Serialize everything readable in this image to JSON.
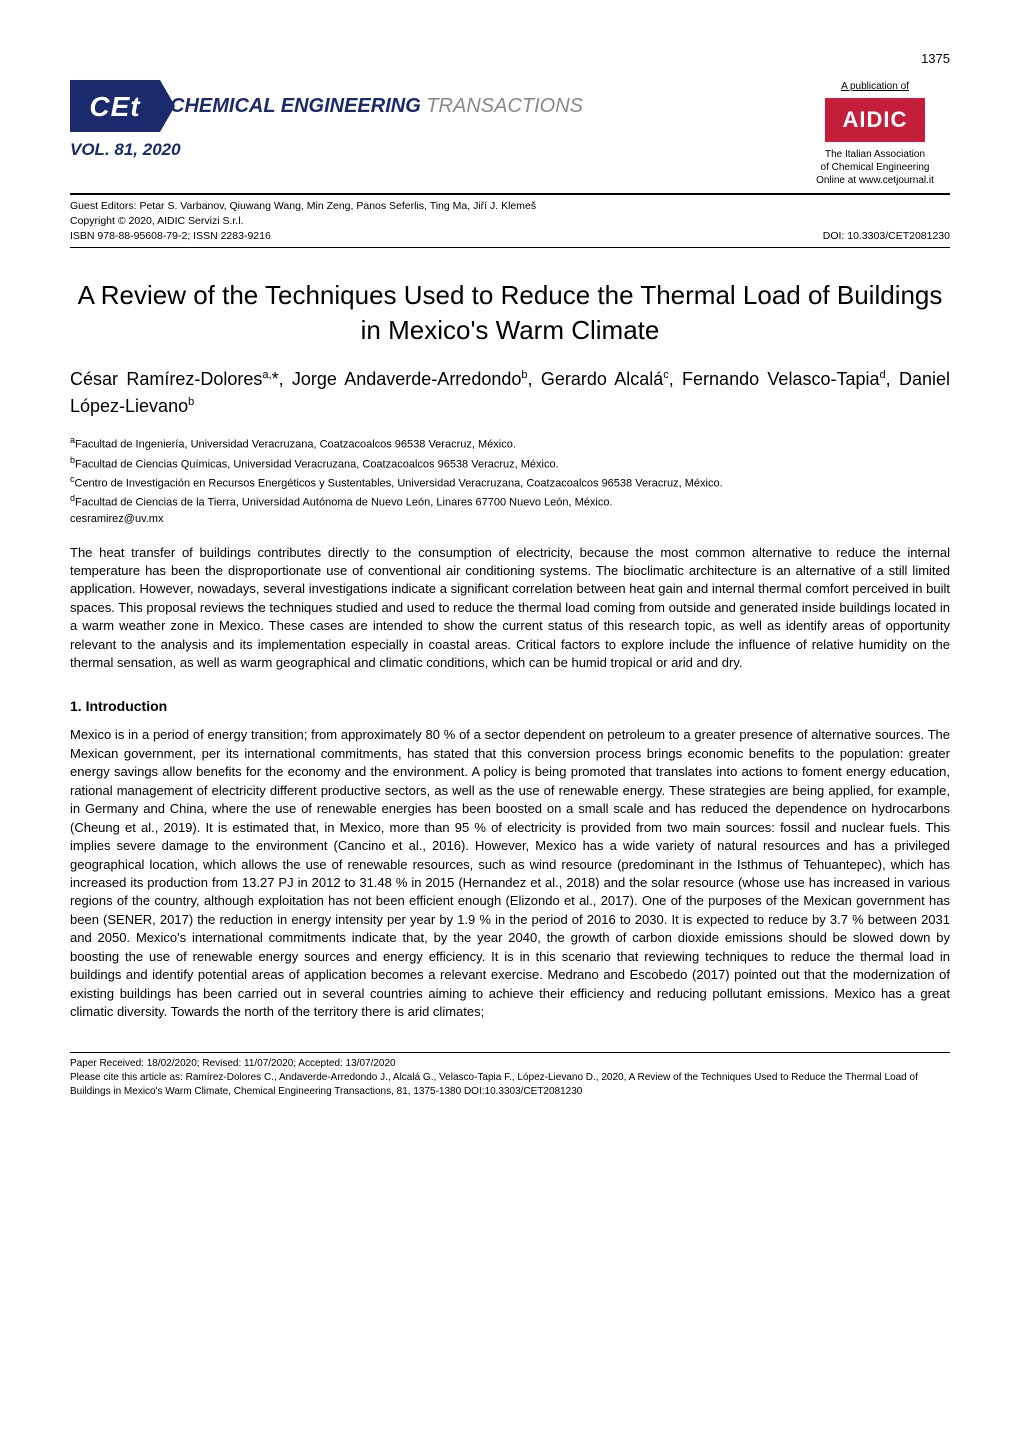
{
  "page_number": "1375",
  "header": {
    "cet_logo_text": "CEt",
    "journal_title_main": "CHEMICAL ENGINEERING",
    "journal_title_sub": "TRANSACTIONS",
    "volume": "VOL. 81, 2020",
    "pub_of": "A publication of",
    "aidic_text": "AIDIC",
    "assoc_line1": "The Italian Association",
    "assoc_line2": "of Chemical Engineering",
    "assoc_line3": "Online at www.cetjournal.it"
  },
  "editors": {
    "guest_editors": "Guest Editors: Petar S. Varbanov, Qiuwang Wang, Min Zeng, Panos Seferlis, Ting Ma, Jiří J. Klemeš",
    "copyright": "Copyright © 2020, AIDIC Servizi S.r.l.",
    "isbn_issn": "ISBN 978-88-95608-79-2; ISSN 2283-9216",
    "doi": "DOI: 10.3303/CET2081230"
  },
  "article": {
    "title": "A Review of the Techniques Used to Reduce the Thermal Load of Buildings in Mexico's Warm Climate",
    "authors_html": "César Ramírez-Dolores<sup>a,</sup>*, Jorge Andaverde-Arredondo<sup>b</sup>, Gerardo Alcalá<sup>c</sup>, Fernando Velasco-Tapia<sup>d</sup>, Daniel López-Lievano<sup>b</sup>",
    "affiliations": [
      {
        "sup": "a",
        "text": "Facultad de Ingeniería, Universidad Veracruzana, Coatzacoalcos 96538 Veracruz, México."
      },
      {
        "sup": "b",
        "text": "Facultad de Ciencias Químicas, Universidad Veracruzana, Coatzacoalcos 96538 Veracruz, México."
      },
      {
        "sup": "c",
        "text": "Centro de Investigación en Recursos Energéticos y Sustentables, Universidad Veracruzana, Coatzacoalcos 96538 Veracruz, México."
      },
      {
        "sup": "d",
        "text": "Facultad de Ciencias de la Tierra, Universidad Autónoma de Nuevo León, Linares 67700 Nuevo León, México."
      }
    ],
    "email": " cesramirez@uv.mx",
    "abstract": "The heat transfer of buildings contributes directly to the consumption of electricity, because the most common alternative to reduce the internal temperature has been the disproportionate use of conventional air conditioning systems. The bioclimatic architecture is an alternative of a still limited application. However, nowadays, several investigations indicate a significant correlation between heat gain and internal thermal comfort perceived in built spaces. This proposal reviews the techniques studied and used to reduce the thermal load coming from outside and generated inside buildings located in a warm weather zone in Mexico. These cases are intended to show the current status of this research topic, as well as identify areas of opportunity relevant to the analysis and its implementation especially in coastal areas. Critical factors to explore include the influence of relative humidity on the thermal sensation, as well as warm geographical and climatic conditions, which can be humid tropical or arid and dry."
  },
  "section1": {
    "heading": "1. Introduction",
    "body": "Mexico is in a period of energy transition; from approximately 80 % of a sector dependent on petroleum to a greater presence of alternative sources. The Mexican government, per its international commitments, has stated that this conversion process brings economic benefits to the population: greater energy savings allow benefits for the economy and the environment. A policy is being promoted that translates into actions to foment energy education, rational management of electricity different productive sectors, as well as the use of renewable energy. These strategies are being applied, for example, in Germany and China, where the use of renewable energies has been boosted on a small scale and has reduced the dependence on hydrocarbons (Cheung et al., 2019). It is estimated that, in Mexico, more than 95 % of electricity is provided from two main sources: fossil and nuclear fuels. This implies severe damage to the environment (Cancino et al., 2016). However, Mexico has a wide variety of natural resources and has a privileged geographical location, which allows the use of renewable resources, such as wind resource (predominant in the Isthmus of Tehuantepec), which has increased its production from 13.27 PJ in 2012 to 31.48 % in 2015 (Hernandez et al., 2018) and the solar resource (whose use has increased in various regions of the country, although exploitation has not been efficient enough (Elizondo et al., 2017). One of the purposes of the Mexican government has been (SENER, 2017) the reduction in energy intensity per year by 1.9 % in the period of 2016 to 2030. It is expected to reduce by 3.7 % between 2031 and 2050. Mexico's international commitments indicate that, by the year 2040, the growth of carbon dioxide emissions should be slowed down by boosting the use of renewable energy sources and energy efficiency. It is in this scenario that reviewing techniques to reduce the thermal load in buildings and identify potential areas of application becomes a relevant exercise. Medrano and Escobedo (2017) pointed out that the modernization of existing buildings has been carried out in several countries aiming to achieve their efficiency and reducing pollutant emissions. Mexico has a great climatic diversity. Towards the north of the territory there is arid climates;"
  },
  "footer": {
    "received": "Paper Received: 18/02/2020; Revised: 11/07/2020; Accepted: 13/07/2020",
    "citation": "Please cite this article as: Ramírez-Dolores C., Andaverde-Arredondo J., Alcalá G., Velasco-Tapia F., López-Lievano D., 2020, A Review of the Techniques Used to Reduce the Thermal Load of Buildings in Mexico's Warm Climate, Chemical Engineering Transactions, 81, 1375-1380 DOI:10.3303/CET2081230"
  },
  "colors": {
    "navy": "#1a2a6c",
    "red": "#c41e3a",
    "gray": "#888888",
    "black": "#000000",
    "white": "#ffffff"
  },
  "typography": {
    "body_fontsize": 13,
    "title_fontsize": 26,
    "authors_fontsize": 18,
    "affiliation_fontsize": 11,
    "footer_fontsize": 10,
    "heading_fontsize": 14
  }
}
